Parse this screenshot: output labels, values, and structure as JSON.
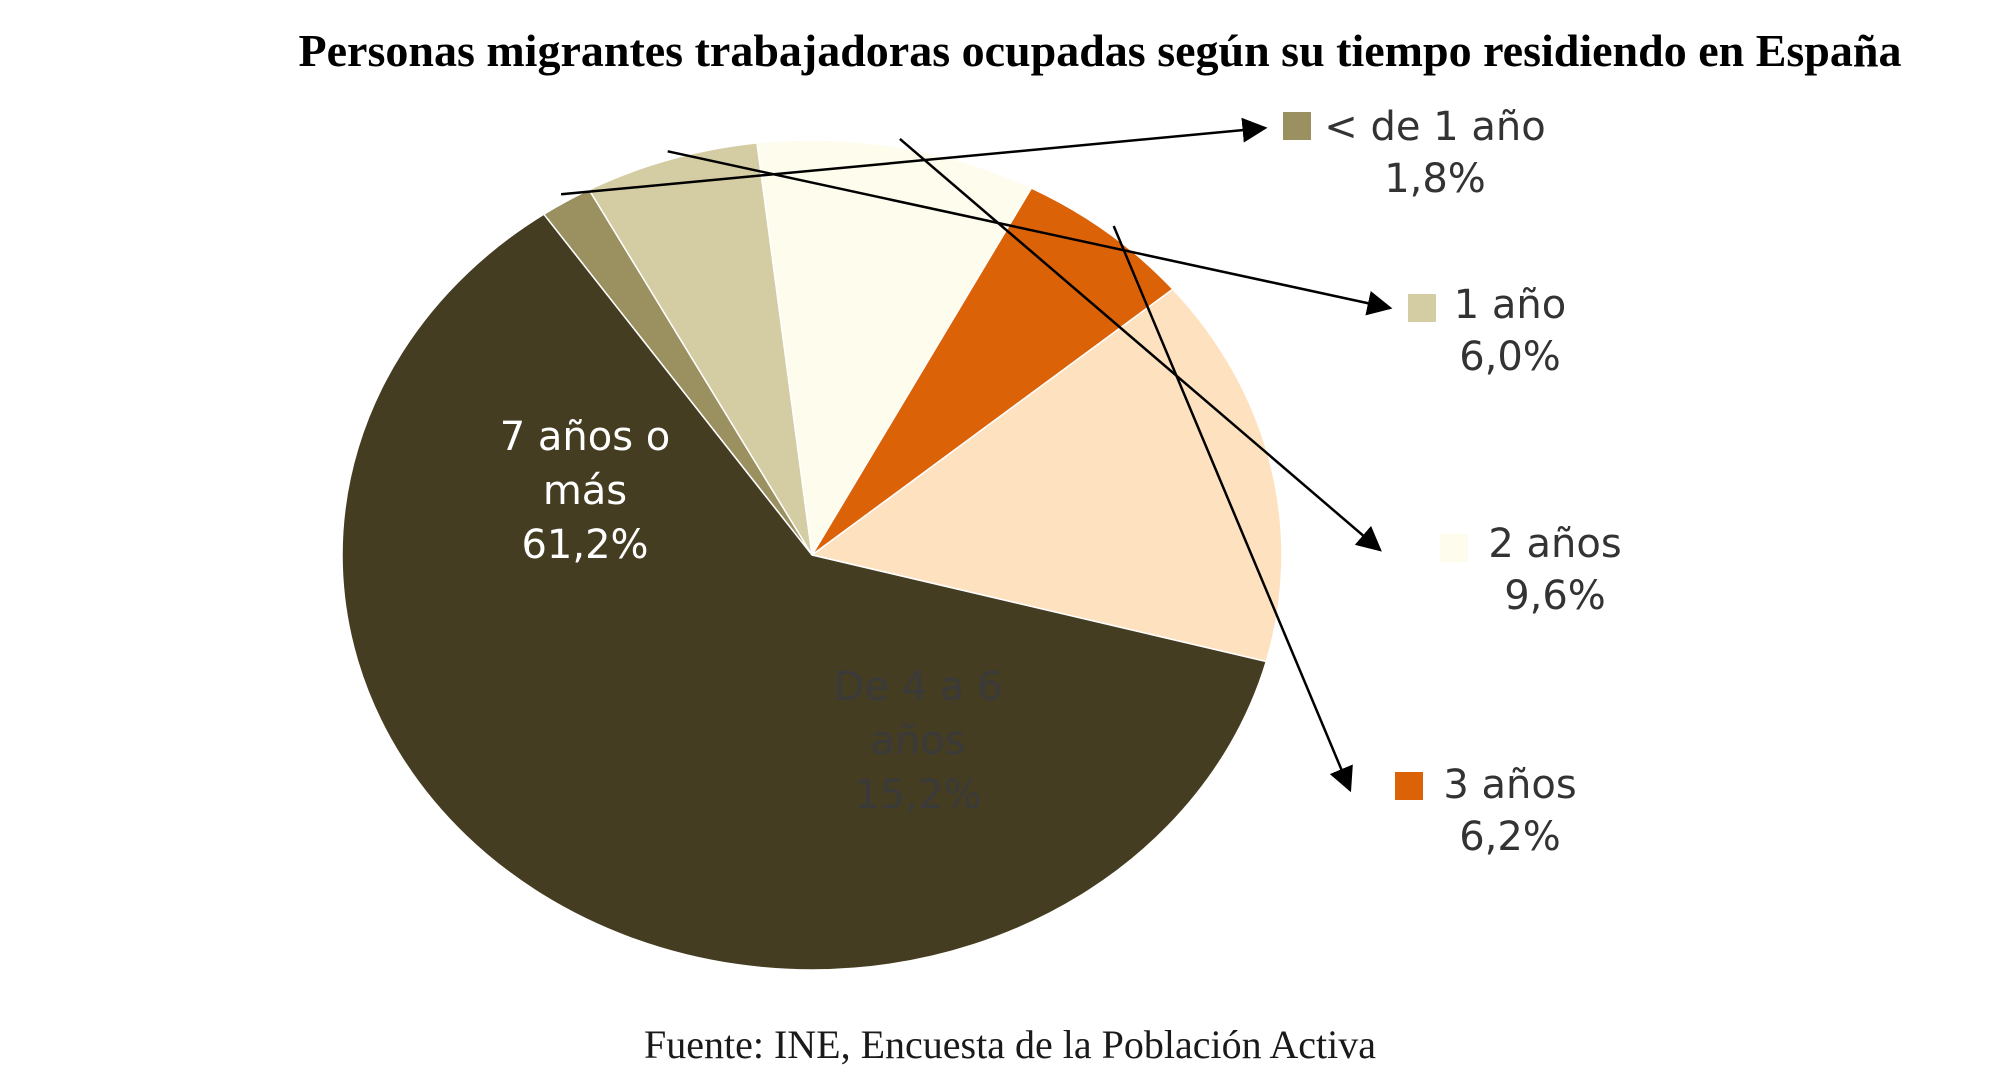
{
  "chart_data": {
    "type": "pie",
    "title": "Personas migrantes trabajadoras ocupadas según su tiempo residiendo en España",
    "source": "Fuente: INE, Encuesta de la Población Activa",
    "slices": [
      {
        "label": "< de 1 año",
        "label_lines": [
          "< de 1 año"
        ],
        "value": 1.8,
        "value_label": "1,8%",
        "color": "#9a9060",
        "label_placement": "outside"
      },
      {
        "label": "1 año",
        "label_lines": [
          "1 año"
        ],
        "value": 6.0,
        "value_label": "6,0%",
        "color": "#d4cca2",
        "label_placement": "outside"
      },
      {
        "label": "2 años",
        "label_lines": [
          "2 años"
        ],
        "value": 9.6,
        "value_label": "9,6%",
        "color": "#fefcec",
        "label_placement": "outside"
      },
      {
        "label": "3 años",
        "label_lines": [
          "3 años"
        ],
        "value": 6.2,
        "value_label": "6,2%",
        "color": "#dc6208",
        "label_placement": "outside"
      },
      {
        "label": "De 4 a 6 años",
        "label_lines": [
          "De 4 a 6",
          "años"
        ],
        "value": 15.2,
        "value_label": "15,2%",
        "color": "#fee2c0",
        "label_placement": "inside",
        "text_color": "#3a3a3a"
      },
      {
        "label": "7 años o más",
        "label_lines": [
          "7 años o",
          "más"
        ],
        "value": 61.2,
        "value_label": "61,2%",
        "color": "#453d22",
        "label_placement": "inside",
        "text_color": "#ffffff"
      }
    ]
  }
}
